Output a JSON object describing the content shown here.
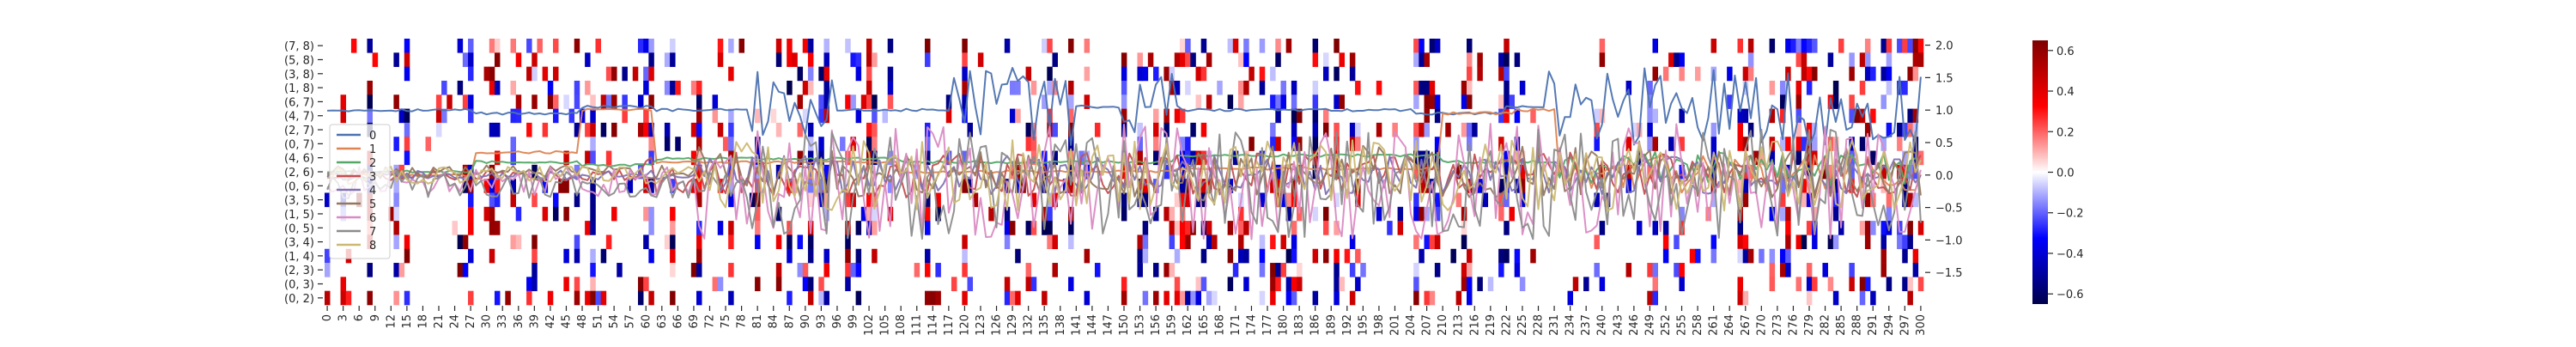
{
  "chart_data": {
    "type": "heatmap",
    "title": "",
    "xlabel": "",
    "ylabel": "",
    "x_tick_labels": [
      "0",
      "3",
      "6",
      "9",
      "12",
      "15",
      "18",
      "21",
      "24",
      "27",
      "30",
      "33",
      "36",
      "39",
      "42",
      "45",
      "48",
      "51",
      "54",
      "57",
      "60",
      "63",
      "66",
      "69",
      "72",
      "75",
      "78",
      "81",
      "84",
      "87",
      "90",
      "93",
      "96",
      "99",
      "102",
      "105",
      "108",
      "111",
      "114",
      "117",
      "120",
      "123",
      "126",
      "129",
      "132",
      "135",
      "138",
      "141",
      "144",
      "147",
      "150",
      "153",
      "156",
      "159",
      "162",
      "165",
      "168",
      "171",
      "174",
      "177",
      "180",
      "183",
      "186",
      "189",
      "192",
      "195",
      "198",
      "201",
      "204",
      "207",
      "210",
      "213",
      "216",
      "219",
      "222",
      "225",
      "228",
      "231",
      "234",
      "237",
      "240",
      "243",
      "246",
      "249",
      "252",
      "255",
      "258",
      "261",
      "264",
      "267",
      "270",
      "273",
      "276",
      "279",
      "282",
      "285",
      "288",
      "291",
      "294",
      "297",
      "300"
    ],
    "x_range": [
      0,
      300
    ],
    "row_labels": [
      "(7, 8)",
      "(5, 8)",
      "(3, 8)",
      "(1, 8)",
      "(6, 7)",
      "(4, 7)",
      "(2, 7)",
      "(0, 7)",
      "(4, 6)",
      "(2, 6)",
      "(0, 6)",
      "(3, 5)",
      "(1, 5)",
      "(0, 5)",
      "(3, 4)",
      "(1, 4)",
      "(2, 3)",
      "(0, 3)",
      "(0, 2)"
    ],
    "heatmap_colorbar": {
      "ticks": [
        0.6,
        0.4,
        0.2,
        0.0,
        -0.2,
        -0.4,
        -0.6
      ],
      "tick_labels": [
        "0.6",
        "0.4",
        "0.2",
        "0.0",
        "−0.2",
        "−0.4",
        "−0.6"
      ],
      "range": [
        -0.65,
        0.65
      ],
      "colormap": "seismic",
      "colors": {
        "low": "#00004c",
        "mid_low": "#0000ff",
        "center": "#ffffff",
        "mid_high": "#ff0000",
        "high": "#7f0000"
      }
    },
    "line_axis": {
      "ticks": [
        2.0,
        1.5,
        1.0,
        0.5,
        0.0,
        -0.5,
        -1.0,
        -1.5
      ],
      "tick_labels": [
        "2.0",
        "1.5",
        "1.0",
        "0.5",
        "0.0",
        "−0.5",
        "−1.0",
        "−1.5"
      ],
      "range": [
        -2.0,
        2.1
      ]
    },
    "legend": {
      "placement": "lower-left",
      "entries": [
        "0",
        "1",
        "2",
        "3",
        "4",
        "5",
        "6",
        "7",
        "8"
      ]
    },
    "series": [
      {
        "name": "0",
        "color": "#4c72b0",
        "style": "step-high-oscillating",
        "segments": [
          [
            0,
            1.0
          ],
          [
            28,
            0.95
          ],
          [
            48,
            1.05
          ],
          [
            62,
            1.0
          ],
          [
            80,
            1.1
          ],
          [
            90,
            1.0
          ],
          [
            118,
            1.05
          ],
          [
            160,
            1.0
          ],
          [
            205,
            0.95
          ],
          [
            222,
            1.05
          ],
          [
            300,
            1.0
          ]
        ],
        "osc_ranges": [
          [
            80,
            95,
            0.5
          ],
          [
            118,
            140,
            0.6
          ],
          [
            150,
            160,
            0.5
          ],
          [
            230,
            300,
            0.6
          ]
        ]
      },
      {
        "name": "1",
        "color": "#dd8452",
        "style": "step",
        "segments": [
          [
            0,
            0.0
          ],
          [
            28,
            0.35
          ],
          [
            48,
            1.0
          ],
          [
            62,
            0.2
          ],
          [
            108,
            0.05
          ],
          [
            160,
            0.1
          ],
          [
            210,
            0.95
          ],
          [
            224,
            1.0
          ],
          [
            232,
            0.0
          ],
          [
            300,
            0.0
          ]
        ],
        "osc_ranges": [
          [
            232,
            300,
            0.3
          ]
        ]
      },
      {
        "name": "2",
        "color": "#55a868",
        "style": "step",
        "segments": [
          [
            0,
            0.05
          ],
          [
            28,
            0.2
          ],
          [
            48,
            0.15
          ],
          [
            62,
            0.25
          ],
          [
            108,
            0.2
          ],
          [
            160,
            0.3
          ],
          [
            210,
            0.2
          ],
          [
            232,
            0.1
          ],
          [
            300,
            0.0
          ]
        ],
        "osc_ranges": [
          [
            232,
            300,
            0.25
          ]
        ]
      },
      {
        "name": "3",
        "color": "#c44e52",
        "style": "noise",
        "base": 0.0,
        "amp": 0.35,
        "seed": 3,
        "osc_start": 60
      },
      {
        "name": "4",
        "color": "#8172b3",
        "style": "noise",
        "base": 0.0,
        "amp": 0.3,
        "seed": 4,
        "osc_start": 70
      },
      {
        "name": "5",
        "color": "#937860",
        "style": "noise",
        "base": 0.05,
        "amp": 0.4,
        "seed": 5,
        "osc_start": 70
      },
      {
        "name": "6",
        "color": "#da8bc3",
        "style": "noise",
        "base": -0.1,
        "amp": 0.9,
        "seed": 6,
        "osc_start": 70
      },
      {
        "name": "7",
        "color": "#8c8c8c",
        "style": "noise",
        "base": -0.15,
        "amp": 0.85,
        "seed": 7,
        "osc_start": 80
      },
      {
        "name": "8",
        "color": "#ccb974",
        "style": "noise",
        "base": 0.0,
        "amp": 0.55,
        "seed": 8,
        "osc_start": 70
      }
    ]
  }
}
